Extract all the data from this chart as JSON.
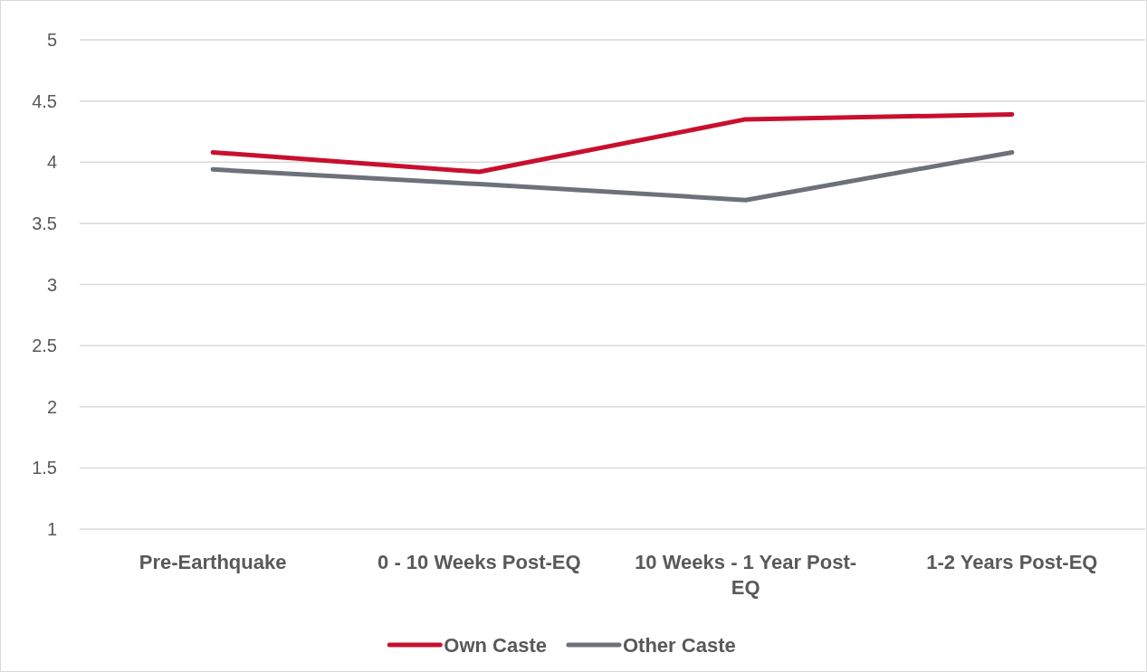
{
  "chart_data": {
    "type": "line",
    "categories": [
      "Pre-Earthquake",
      "0 - 10 Weeks Post-EQ",
      "10 Weeks - 1 Year Post-EQ",
      "1-2 Years Post-EQ"
    ],
    "series": [
      {
        "name": "Own Caste",
        "color": "#c8102e",
        "values": [
          4.08,
          3.92,
          4.35,
          4.39
        ]
      },
      {
        "name": "Other Caste",
        "color": "#6d7179",
        "values": [
          3.94,
          3.82,
          3.69,
          4.08
        ]
      }
    ],
    "ylim": [
      1,
      5
    ],
    "yticks": [
      1,
      1.5,
      2,
      2.5,
      3,
      3.5,
      4,
      4.5,
      5
    ],
    "grid": "y",
    "legend": "bottom",
    "marker": "none",
    "line_style": "solid"
  }
}
